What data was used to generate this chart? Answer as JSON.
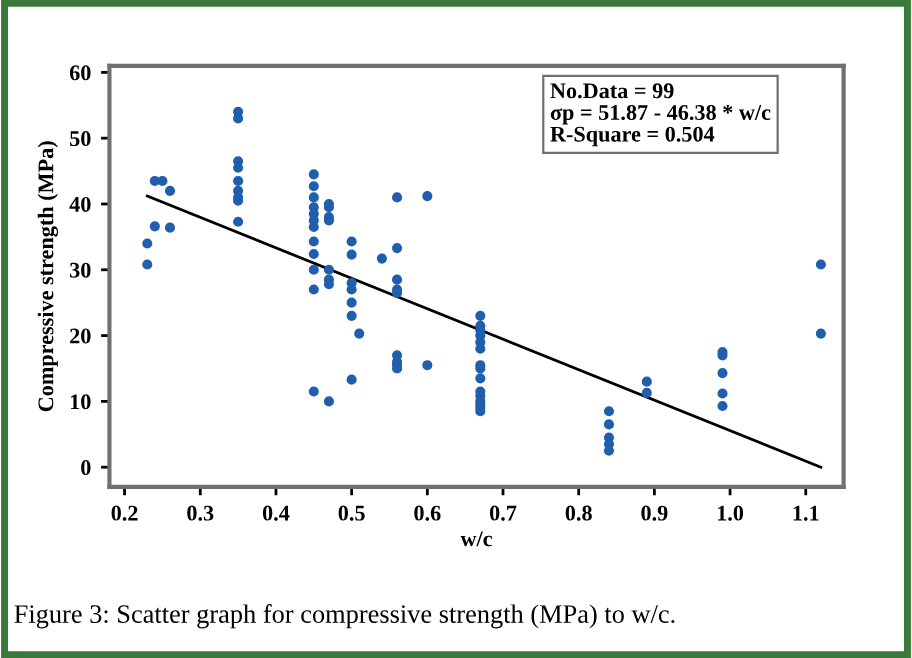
{
  "chart_data": {
    "type": "scatter",
    "xlabel": "w/c",
    "ylabel": "Compressive strength (MPa)",
    "xlim": [
      0.18,
      1.15
    ],
    "ylim": [
      -3,
      61
    ],
    "xticks": [
      {
        "value": 0.2,
        "label": "0.2"
      },
      {
        "value": 0.3,
        "label": "0.3"
      },
      {
        "value": 0.4,
        "label": "0.4"
      },
      {
        "value": 0.5,
        "label": "0.5"
      },
      {
        "value": 0.6,
        "label": "0.6"
      },
      {
        "value": 0.7,
        "label": "0.7"
      },
      {
        "value": 0.8,
        "label": "0.8"
      },
      {
        "value": 0.9,
        "label": "0.9"
      },
      {
        "value": 1.0,
        "label": "1.0"
      },
      {
        "value": 1.1,
        "label": "1.1"
      }
    ],
    "yticks": [
      0,
      10,
      20,
      30,
      40,
      50,
      60
    ],
    "grid": false,
    "legend": false,
    "series": [
      {
        "color": "#1f5fad",
        "marker": "circle",
        "x": [
          0.23,
          0.23,
          0.24,
          0.24,
          0.25,
          0.26,
          0.26,
          0.35,
          0.35,
          0.35,
          0.35,
          0.35,
          0.35,
          0.35,
          0.35,
          0.35,
          0.45,
          0.45,
          0.45,
          0.45,
          0.45,
          0.45,
          0.45,
          0.45,
          0.45,
          0.45,
          0.45,
          0.45,
          0.47,
          0.47,
          0.47,
          0.47,
          0.47,
          0.47,
          0.47,
          0.47,
          0.5,
          0.5,
          0.5,
          0.5,
          0.5,
          0.5,
          0.5,
          0.51,
          0.54,
          0.56,
          0.56,
          0.56,
          0.56,
          0.56,
          0.56,
          0.56,
          0.56,
          0.56,
          0.6,
          0.6,
          0.67,
          0.67,
          0.67,
          0.67,
          0.67,
          0.67,
          0.67,
          0.67,
          0.67,
          0.67,
          0.67,
          0.67,
          0.67,
          0.67,
          0.67,
          0.84,
          0.84,
          0.84,
          0.84,
          0.84,
          0.89,
          0.89,
          0.99,
          0.99,
          0.99,
          0.99,
          0.99,
          1.12,
          1.12
        ],
        "values": [
          34,
          30.8,
          43.5,
          36.6,
          43.5,
          42,
          36.4,
          54,
          53,
          46.5,
          45.5,
          43.5,
          42,
          41,
          40.5,
          37.3,
          44.5,
          42.7,
          41,
          39.5,
          38.5,
          37.5,
          36.5,
          34.3,
          32.4,
          30,
          27,
          11.5,
          40,
          39.5,
          38,
          37.5,
          30,
          28.5,
          27.8,
          10,
          34.3,
          32.3,
          28,
          27,
          25,
          23,
          13.3,
          20.3,
          31.7,
          41,
          33.3,
          28.5,
          27,
          26.5,
          17,
          16,
          15.5,
          15,
          41.2,
          15.5,
          23,
          21.5,
          20.8,
          20,
          19,
          18,
          15.5,
          15,
          13.5,
          11.5,
          10.8,
          10,
          9.5,
          9,
          8.5,
          8.5,
          6.5,
          4.5,
          3.5,
          2.5,
          13,
          11.3,
          17.5,
          17,
          14.3,
          11.2,
          9.3,
          30.8,
          20.3
        ]
      },
      {
        "type": "line",
        "color": "#000000",
        "marker": "none",
        "line_style": "solid",
        "x": [
          0.23,
          1.12
        ],
        "values": [
          41.2,
          0.0
        ]
      }
    ],
    "annotations": [
      "No.Data = 99\nσp = 51.87 - 46.38 * w/c\nR-Square = 0.504",
      "Figure 3: Scatter graph for compressive strength (MPa) to w/c."
    ]
  }
}
